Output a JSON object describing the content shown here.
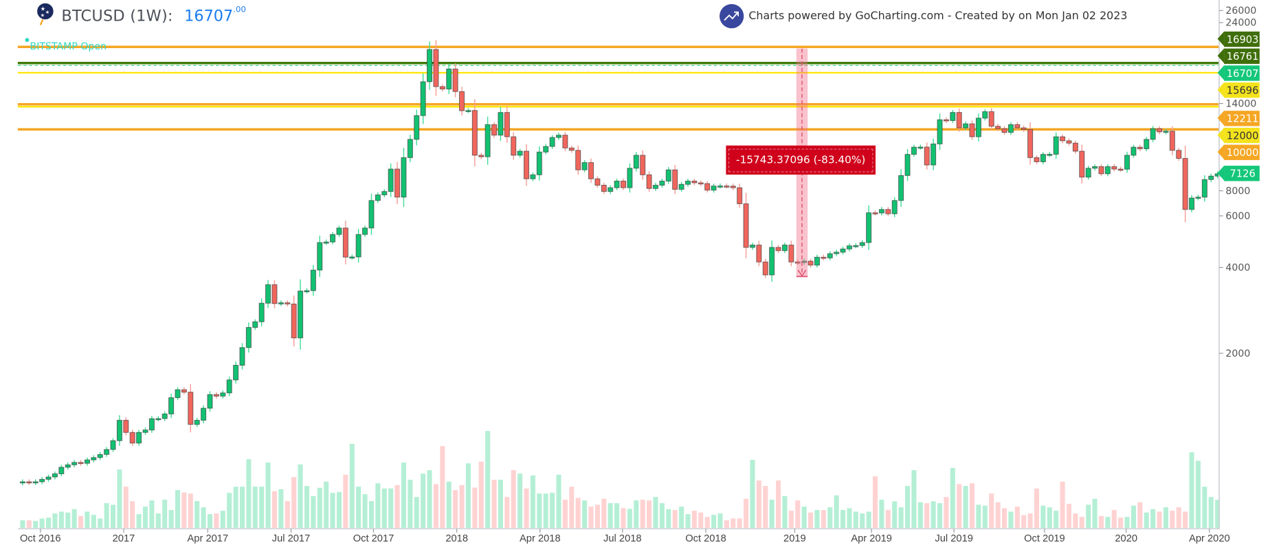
{
  "header": {
    "symbol_label": "BTCUSD (1W):",
    "price_main": "16707",
    "price_decimals": ".00",
    "logo_icon": "bitcoin-stars-logo-icon",
    "series_label": "BITSTAMP Open"
  },
  "credit": {
    "icon": "trending-up-icon",
    "text": "Charts powered by GoCharting.com - Created by  on Mon Jan 02 2023"
  },
  "colors": {
    "up": "#12c171",
    "down": "#f0665d",
    "volume_up": "#b4efd5",
    "volume_down": "#ffd2d2",
    "accent_blue": "#1a7cf0",
    "measure_red": "#d0021b"
  },
  "price_lines": [
    {
      "value": "16903",
      "color": "#3f6e0a",
      "text_color": "#ffffff"
    },
    {
      "value": "16761",
      "color": "#3f6e0a",
      "text_color": "#ffffff"
    },
    {
      "value": "16707",
      "color": "#14c77a",
      "text_color": "#ffffff"
    },
    {
      "value": "15696",
      "color": "#f4e31c",
      "text_color": "#333333"
    },
    {
      "value": "12211",
      "color": "#f5a623",
      "text_color": "#ffffff"
    },
    {
      "value": "12000",
      "color": "#f4e31c",
      "text_color": "#333333"
    },
    {
      "value": "10000",
      "color": "#f5a623",
      "text_color": "#ffffff"
    },
    {
      "value": "7126",
      "color": "#14c77a",
      "text_color": "#ffffff"
    }
  ],
  "measure": {
    "label": "-15743.37096 (-83.40%)"
  },
  "chart_data": {
    "type": "candlestick",
    "interval": "1W",
    "y_scale": "log",
    "y_ticks": [
      "26000",
      "24000",
      "14000",
      "8000",
      "6000",
      "4000",
      "2000"
    ],
    "x_ticks": [
      "Oct 2016",
      "2017",
      "Apr 2017",
      "Jul 2017",
      "Oct 2017",
      "2018",
      "Apr 2018",
      "Jul 2018",
      "Oct 2018",
      "2019",
      "Apr 2019",
      "Jul 2019",
      "Oct 2019",
      "2020",
      "Apr 2020"
    ],
    "grid": false,
    "close": [
      708,
      703,
      708,
      722,
      736,
      755,
      796,
      812,
      828,
      822,
      845,
      861,
      883,
      919,
      987,
      1164,
      1055,
      968,
      1055,
      1076,
      1179,
      1180,
      1225,
      1397,
      1490,
      1461,
      1126,
      1164,
      1283,
      1433,
      1415,
      1452,
      1613,
      1816,
      2095,
      2466,
      2581,
      2999,
      3484,
      2990,
      3010,
      2980,
      2265,
      3309,
      3320,
      3920,
      4897,
      4920,
      5228,
      5508,
      4353,
      4360,
      5228,
      5508,
      6880,
      7200,
      7400,
      8873,
      7070,
      9730,
      11280,
      13670,
      17970,
      23330,
      17280,
      16940,
      19930,
      16600,
      14220,
      14250,
      9920,
      9800,
      12710,
      11670,
      14020,
      11520,
      9920,
      10250,
      8200,
      8470,
      10180,
      10650,
      11450,
      11670,
      10520,
      10320,
      8815,
      9350,
      8200,
      7785,
      7400,
      7630,
      8050,
      7630,
      8930,
      9920,
      8470,
      7580,
      7785,
      8050,
      8815,
      7530,
      7840,
      8050,
      7940,
      7890,
      7480,
      7735,
      7740,
      7730,
      7630,
      6700,
      4710,
      4800,
      4186,
      3770,
      4710,
      4587,
      4800,
      4186,
      4170,
      4215,
      4080,
      4350,
      4325,
      4475,
      4530,
      4650,
      4770,
      4780,
      4897,
      6230,
      6220,
      6400,
      6180,
      6880,
      8420,
      9990,
      10590,
      10600,
      9170,
      10870,
      13220,
      13130,
      14020,
      12380,
      12790,
      11520,
      13390,
      14110,
      12540,
      12300,
      11930,
      12710,
      12380,
      12220,
      9730,
      9410,
      9990,
      10000,
      11520,
      11150,
      10940,
      10250,
      8310,
      8930,
      9050,
      8540,
      9050,
      8870,
      8860,
      9920,
      10590,
      10450,
      11280,
      12300,
      11980,
      12050,
      10320,
      9670,
      6400,
      7020,
      7070,
      8150,
      8380,
      8540
    ],
    "volume_relative": [
      33,
      33,
      30,
      41,
      45,
      63,
      71,
      67,
      82,
      52,
      71,
      57,
      41,
      108,
      101,
      255,
      180,
      117,
      60,
      93,
      120,
      63,
      123,
      78,
      165,
      155,
      150,
      117,
      90,
      60,
      63,
      75,
      153,
      180,
      180,
      300,
      180,
      180,
      285,
      160,
      169,
      117,
      222,
      277,
      183,
      139,
      175,
      202,
      153,
      157,
      232,
      367,
      180,
      147,
      117,
      195,
      172,
      172,
      187,
      285,
      210,
      135,
      237,
      252,
      191,
      357,
      202,
      165,
      187,
      282,
      176,
      289,
      423,
      210,
      210,
      135,
      252,
      237,
      172,
      229,
      150,
      150,
      153,
      232,
      123,
      180,
      131,
      120,
      93,
      101,
      127,
      108,
      108,
      86,
      83,
      120,
      123,
      120,
      135,
      108,
      82,
      78,
      93,
      60,
      75,
      67,
      48,
      57,
      63,
      33,
      41,
      41,
      127,
      297,
      207,
      183,
      123,
      207,
      139,
      75,
      120,
      93,
      67,
      78,
      78,
      90,
      142,
      78,
      86,
      71,
      63,
      71,
      225,
      123,
      78,
      116,
      90,
      183,
      252,
      112,
      108,
      116,
      108,
      135,
      262,
      191,
      183,
      195,
      101,
      97,
      150,
      112,
      86,
      71,
      93,
      56,
      63,
      172,
      97,
      90,
      75,
      202,
      105,
      63,
      48,
      101,
      127,
      52,
      48,
      78,
      45,
      48,
      97,
      112,
      67,
      82,
      71,
      90,
      75,
      90,
      71,
      330,
      293,
      180,
      135,
      123,
      116
    ]
  }
}
